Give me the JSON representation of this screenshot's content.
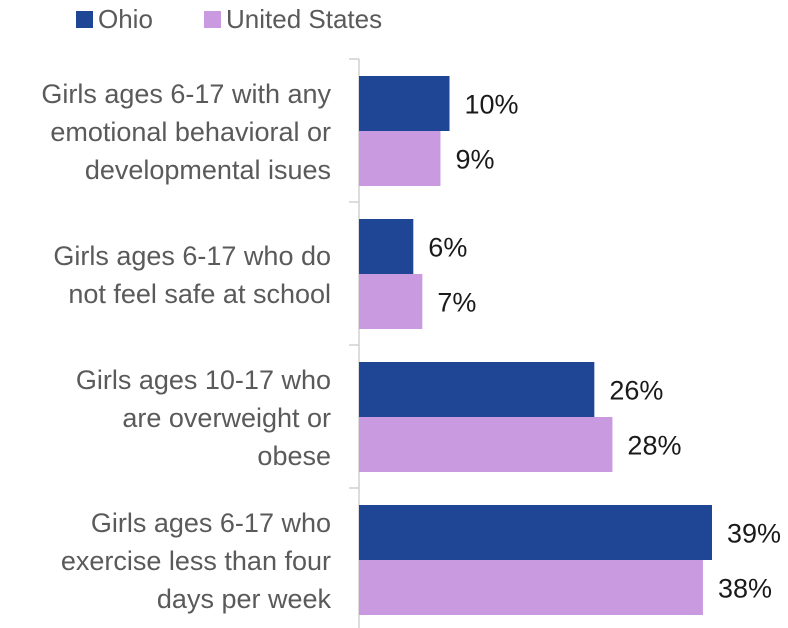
{
  "chart_data": {
    "type": "bar",
    "orientation": "horizontal",
    "categories": [
      [
        "Girls ages 6-17 with any",
        "emotional behavioral or",
        "developmental isues"
      ],
      [
        "Girls ages 6-17 who do",
        "not feel safe at school"
      ],
      [
        "Girls ages 10-17 who",
        "are overweight or",
        "obese"
      ],
      [
        "Girls ages 6-17 who",
        "exercise less than four",
        "days per week"
      ]
    ],
    "series": [
      {
        "name": "Ohio",
        "values": [
          10,
          6,
          26,
          39
        ],
        "labels": [
          "10%",
          "6%",
          "26%",
          "39%"
        ],
        "color": "#1f4694"
      },
      {
        "name": "United States",
        "values": [
          9,
          7,
          28,
          38
        ],
        "labels": [
          "9%",
          "7%",
          "28%",
          "38%"
        ],
        "color": "#c99ae0"
      }
    ],
    "xlim": [
      0,
      40
    ],
    "legend_position": "top-left",
    "grid": false,
    "axis_line_color": "#d0d0d0"
  }
}
